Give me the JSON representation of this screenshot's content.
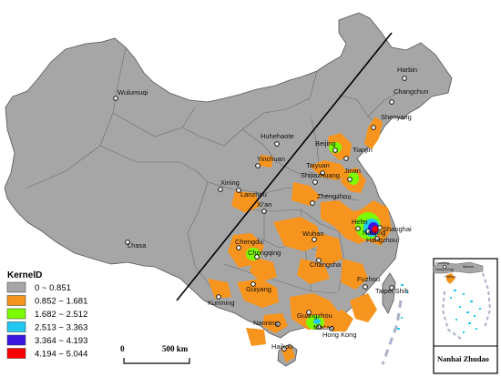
{
  "legend": {
    "title": "KernelD",
    "classes": [
      {
        "label": "0 ~ 0.851",
        "color": "#a6a6a6"
      },
      {
        "label": "0.852 ~ 1.681",
        "color": "#f7941d"
      },
      {
        "label": "1.682 ~ 2.512",
        "color": "#7cfc00"
      },
      {
        "label": "2.513 ~ 3.363",
        "color": "#1ec8ef"
      },
      {
        "label": "3.364 ~ 4.193",
        "color": "#3a18e0"
      },
      {
        "label": "4.194 ~ 5.044",
        "color": "#ff0000"
      }
    ]
  },
  "scale": {
    "start": "0",
    "end": "500 km"
  },
  "inset": {
    "title": "Nanhai Zhudao"
  },
  "cities": {
    "harbin": "Harbin",
    "changchun": "Changchun",
    "shenyang": "Shenyang",
    "wulumuqi": "Wulumuqi",
    "huhehaote": "Huhehaote",
    "beijing": "Beijing",
    "tianjin": "Tianjin",
    "yinchuan": "Yinchuan",
    "taiyuan": "Taiyuan",
    "shijiazhuang": "Shijiazhuang",
    "jinan": "Jinan",
    "xining": "Xining",
    "lanzhou": "Lanzhou",
    "zhengzhou": "Zhengzhou",
    "xian": "Xi'an",
    "hefei": "Hefei",
    "nanjing": "Nanjing",
    "shanghai": "Shanghai",
    "hangzhou": "Hangzhou",
    "lhasa": "Lhasa",
    "chengdu": "Chengdu",
    "chongqing": "Chongqing",
    "wuhan": "Wuhan",
    "changsha": "Changsha",
    "fuzhou": "Fuzhou",
    "taipei": "Taipei Shih",
    "guiyang": "Guiyang",
    "kunming": "Kunming",
    "guangzhou": "Guangzhou",
    "nanning": "Nanning",
    "macao": "Macao",
    "hongkong": "Hong Kong",
    "haikou": "Haikou"
  },
  "inset_cities": {
    "nanning": "Nanning",
    "hongkong": "Hong Kong",
    "macao": "Macao",
    "haikou": "Haikou"
  }
}
